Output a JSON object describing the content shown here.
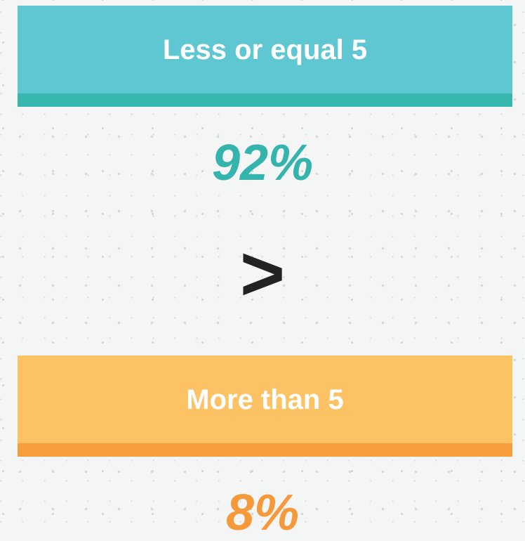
{
  "blocks": [
    {
      "label": "Less or equal 5",
      "value": "92%"
    },
    {
      "label": "More than 5",
      "value": "8%"
    }
  ],
  "comparator": ">"
}
